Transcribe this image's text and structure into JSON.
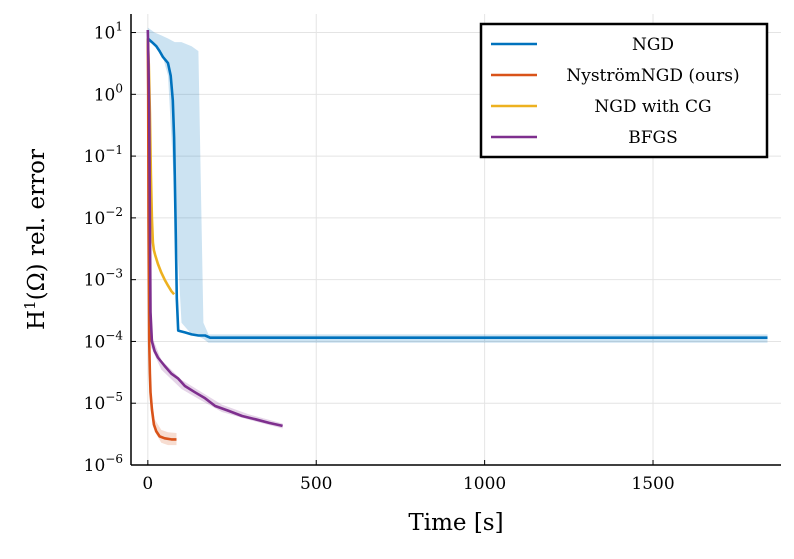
{
  "chart_data": {
    "type": "line",
    "xlabel": "Time [s]",
    "ylabel": "H¹(Ω) rel. error",
    "ylabel_parts": {
      "base": "H",
      "sup": "1",
      "rest": "(Ω) rel. error"
    },
    "xlim": [
      -50,
      1880
    ],
    "ylim_log10": [
      -6,
      1.3
    ],
    "y_scale": "log",
    "grid": true,
    "legend_position": "top-right",
    "x_ticks": [
      {
        "value": 0,
        "label": "0"
      },
      {
        "value": 500,
        "label": "500"
      },
      {
        "value": 1000,
        "label": "1000"
      },
      {
        "value": 1500,
        "label": "1500"
      }
    ],
    "y_ticks": [
      {
        "exp": 1,
        "base": "10",
        "sup": "1"
      },
      {
        "exp": 0,
        "base": "10",
        "sup": "0"
      },
      {
        "exp": -1,
        "base": "10",
        "sup": "−1"
      },
      {
        "exp": -2,
        "base": "10",
        "sup": "−2"
      },
      {
        "exp": -3,
        "base": "10",
        "sup": "−3"
      },
      {
        "exp": -4,
        "base": "10",
        "sup": "−4"
      },
      {
        "exp": -5,
        "base": "10",
        "sup": "−5"
      },
      {
        "exp": -6,
        "base": "10",
        "sup": "−6"
      }
    ],
    "series": [
      {
        "name": "NGD",
        "color": "#0072bd",
        "points": [
          [
            0,
            8
          ],
          [
            12,
            7
          ],
          [
            25,
            6
          ],
          [
            35,
            5
          ],
          [
            45,
            4
          ],
          [
            60,
            3.2
          ],
          [
            68,
            2
          ],
          [
            74,
            0.8
          ],
          [
            78,
            0.2
          ],
          [
            82,
            0.01
          ],
          [
            86,
            0.0005
          ],
          [
            90,
            0.00015
          ],
          [
            100,
            0.000145
          ],
          [
            110,
            0.00014
          ],
          [
            130,
            0.00013
          ],
          [
            150,
            0.000125
          ],
          [
            170,
            0.000125
          ],
          [
            185,
            0.000115
          ],
          [
            200,
            0.000115
          ],
          [
            500,
            0.000115
          ],
          [
            1000,
            0.000115
          ],
          [
            1500,
            0.000115
          ],
          [
            1840,
            0.000115
          ]
        ],
        "band": [
          [
            0,
            8,
            12
          ],
          [
            20,
            6,
            10
          ],
          [
            40,
            5,
            9
          ],
          [
            60,
            2,
            8
          ],
          [
            80,
            0.02,
            7
          ],
          [
            100,
            0.0002,
            7
          ],
          [
            130,
            0.00013,
            6
          ],
          [
            150,
            0.00012,
            5
          ],
          [
            165,
            0.00011,
            0.0002
          ],
          [
            180,
            9.5e-05,
            0.00013
          ],
          [
            500,
            9.5e-05,
            0.00013
          ],
          [
            1000,
            9.5e-05,
            0.00013
          ],
          [
            1500,
            9.5e-05,
            0.00013
          ],
          [
            1840,
            9.5e-05,
            0.00013
          ]
        ]
      },
      {
        "name": "NyströmNGD (ours)",
        "color": "#d95319",
        "points": [
          [
            0,
            8
          ],
          [
            1,
            1
          ],
          [
            2,
            0.01
          ],
          [
            4,
            0.0001
          ],
          [
            6,
            3e-05
          ],
          [
            8,
            1.5e-05
          ],
          [
            12,
            8e-06
          ],
          [
            18,
            4.5e-06
          ],
          [
            25,
            3.5e-06
          ],
          [
            35,
            2.9e-06
          ],
          [
            50,
            2.7e-06
          ],
          [
            70,
            2.6e-06
          ],
          [
            85,
            2.6e-06
          ]
        ],
        "band": [
          [
            4,
            8e-05,
            0.00012
          ],
          [
            10,
            9e-06,
            1.5e-05
          ],
          [
            20,
            3.5e-06,
            5.5e-06
          ],
          [
            40,
            2.3e-06,
            3.7e-06
          ],
          [
            60,
            2.1e-06,
            3.4e-06
          ],
          [
            85,
            2.1e-06,
            3.3e-06
          ]
        ]
      },
      {
        "name": "NGD with CG",
        "color": "#edb120",
        "points": [
          [
            0,
            8
          ],
          [
            3,
            3
          ],
          [
            6,
            0.5
          ],
          [
            9,
            0.05
          ],
          [
            12,
            0.01
          ],
          [
            15,
            0.004
          ],
          [
            18,
            0.003
          ],
          [
            22,
            0.0025
          ],
          [
            30,
            0.0018
          ],
          [
            40,
            0.0013
          ],
          [
            50,
            0.001
          ],
          [
            60,
            0.0008
          ],
          [
            70,
            0.00065
          ],
          [
            78,
            0.00058
          ]
        ],
        "band": []
      },
      {
        "name": "BFGS",
        "color": "#7e2f8e",
        "points": [
          [
            0,
            11
          ],
          [
            2,
            3
          ],
          [
            4,
            0.5
          ],
          [
            6,
            0.01
          ],
          [
            8,
            0.0003
          ],
          [
            12,
            0.0001
          ],
          [
            20,
            7e-05
          ],
          [
            30,
            5.5e-05
          ],
          [
            50,
            4e-05
          ],
          [
            70,
            3e-05
          ],
          [
            90,
            2.5e-05
          ],
          [
            110,
            1.9e-05
          ],
          [
            140,
            1.5e-05
          ],
          [
            170,
            1.2e-05
          ],
          [
            200,
            9e-06
          ],
          [
            240,
            7.5e-06
          ],
          [
            280,
            6.2e-06
          ],
          [
            320,
            5.5e-06
          ],
          [
            360,
            4.8e-06
          ],
          [
            400,
            4.3e-06
          ]
        ],
        "band": [
          [
            10,
            8e-05,
            0.00013
          ],
          [
            40,
            3.5e-05,
            5e-05
          ],
          [
            100,
            1.7e-05,
            2.4e-05
          ],
          [
            160,
            1.1e-05,
            1.5e-05
          ],
          [
            220,
            7.2e-06,
            9.5e-06
          ],
          [
            300,
            5.4e-06,
            6.6e-06
          ],
          [
            400,
            3.9e-06,
            4.7e-06
          ]
        ]
      }
    ]
  }
}
